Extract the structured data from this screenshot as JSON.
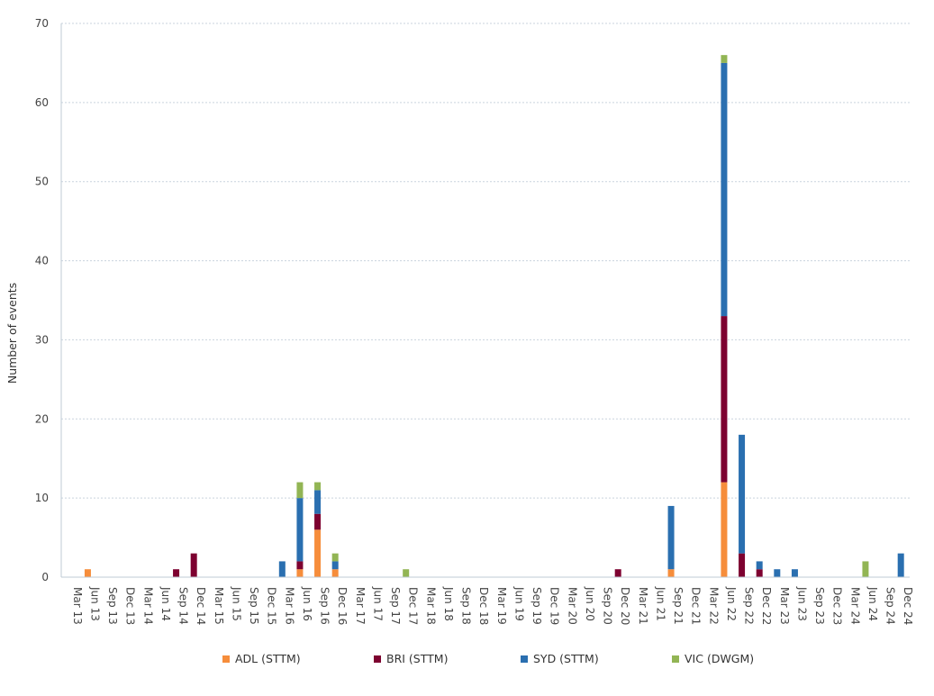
{
  "chart_data": {
    "type": "bar",
    "stacked": true,
    "title": "",
    "xlabel": "",
    "ylabel": "Number of events",
    "ylim": [
      0,
      70
    ],
    "yticks": [
      0,
      10,
      20,
      30,
      40,
      50,
      60,
      70
    ],
    "grid": "horizontal-dotted",
    "legend_position": "bottom",
    "categories": [
      "Mar 13",
      "Jun 13",
      "Sep 13",
      "Dec 13",
      "Mar 14",
      "Jun 14",
      "Sep 14",
      "Dec 14",
      "Mar 15",
      "Jun 15",
      "Sep 15",
      "Dec 15",
      "Mar 16",
      "Jun 16",
      "Sep 16",
      "Dec 16",
      "Mar 17",
      "Jun 17",
      "Sep 17",
      "Dec 17",
      "Mar 18",
      "Jun 18",
      "Sep 18",
      "Dec 18",
      "Mar 19",
      "Jun 19",
      "Sep 19",
      "Dec 19",
      "Mar 20",
      "Jun 20",
      "Sep 20",
      "Dec 20",
      "Mar 21",
      "Jun 21",
      "Sep 21",
      "Dec 21",
      "Mar 22",
      "Jun 22",
      "Sep 22",
      "Dec 22",
      "Mar 23",
      "Jun 23",
      "Sep 23",
      "Dec 23",
      "Mar 24",
      "Jun 24",
      "Sep 24",
      "Dec 24"
    ],
    "series": [
      {
        "name": "ADL (STTM)",
        "color": "#f68d3b",
        "values": [
          0,
          1,
          0,
          0,
          0,
          0,
          0,
          0,
          0,
          0,
          0,
          0,
          0,
          1,
          6,
          1,
          0,
          0,
          0,
          0,
          0,
          0,
          0,
          0,
          0,
          0,
          0,
          0,
          0,
          0,
          0,
          0,
          0,
          0,
          1,
          0,
          0,
          12,
          0,
          0,
          0,
          0,
          0,
          0,
          0,
          0,
          0,
          0
        ]
      },
      {
        "name": "BRI (STTM)",
        "color": "#7d0130",
        "values": [
          0,
          0,
          0,
          0,
          0,
          0,
          1,
          3,
          0,
          0,
          0,
          0,
          0,
          1,
          2,
          0,
          0,
          0,
          0,
          0,
          0,
          0,
          0,
          0,
          0,
          0,
          0,
          0,
          0,
          0,
          0,
          1,
          0,
          0,
          0,
          0,
          0,
          21,
          3,
          1,
          0,
          0,
          0,
          0,
          0,
          0,
          0,
          0
        ]
      },
      {
        "name": "SYD (STTM)",
        "color": "#2a6fb0",
        "values": [
          0,
          0,
          0,
          0,
          0,
          0,
          0,
          0,
          0,
          0,
          0,
          0,
          2,
          8,
          3,
          1,
          0,
          0,
          0,
          0,
          0,
          0,
          0,
          0,
          0,
          0,
          0,
          0,
          0,
          0,
          0,
          0,
          0,
          0,
          8,
          0,
          0,
          32,
          15,
          1,
          1,
          1,
          0,
          0,
          0,
          0,
          0,
          3
        ]
      },
      {
        "name": "VIC (DWGM)",
        "color": "#92b554",
        "values": [
          0,
          0,
          0,
          0,
          0,
          0,
          0,
          0,
          0,
          0,
          0,
          0,
          0,
          2,
          1,
          1,
          0,
          0,
          0,
          1,
          0,
          0,
          0,
          0,
          0,
          0,
          0,
          0,
          0,
          0,
          0,
          0,
          0,
          0,
          0,
          0,
          0,
          1,
          0,
          0,
          0,
          0,
          0,
          0,
          0,
          2,
          0,
          0
        ]
      }
    ]
  }
}
